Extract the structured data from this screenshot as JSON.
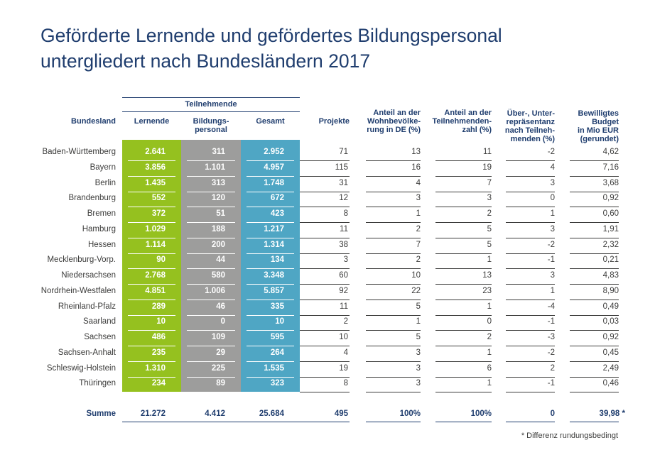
{
  "title_line1": "Geförderte Lernende und gefördertes Bildungspersonal",
  "title_line2": "untergliedert nach Bundesländern 2017",
  "colors": {
    "title": "#1f3d6e",
    "lernende": "#95c11f",
    "bildungspersonal": "#9d9d9c",
    "gesamt": "#4fa6c4"
  },
  "headers": {
    "group": "Teilnehmende",
    "bundesland": "Bundesland",
    "lernende": "Lernende",
    "bildungspersonal": [
      "Bildungs-",
      "personal"
    ],
    "gesamt": "Gesamt",
    "projekte": "Projekte",
    "anteil_bev": [
      "Anteil an der",
      "Wohnbevölke-",
      "rung in DE (%)"
    ],
    "anteil_tn": [
      "Anteil an der",
      "Teilnehmenden-",
      "zahl (%)"
    ],
    "repr": [
      "Über-, Unter-",
      "repräsentanz",
      "nach Teilneh-",
      "menden (%)"
    ],
    "budget": [
      "Bewilligtes",
      "Budget",
      "in Mio EUR",
      "(gerundet)"
    ]
  },
  "rows": [
    [
      "Baden-Württemberg",
      "2.641",
      "311",
      "2.952",
      "71",
      "13",
      "11",
      "-2",
      "4,62"
    ],
    [
      "Bayern",
      "3.856",
      "1.101",
      "4.957",
      "115",
      "16",
      "19",
      "4",
      "7,16"
    ],
    [
      "Berlin",
      "1.435",
      "313",
      "1.748",
      "31",
      "4",
      "7",
      "3",
      "3,68"
    ],
    [
      "Brandenburg",
      "552",
      "120",
      "672",
      "12",
      "3",
      "3",
      "0",
      "0,92"
    ],
    [
      "Bremen",
      "372",
      "51",
      "423",
      "8",
      "1",
      "2",
      "1",
      "0,60"
    ],
    [
      "Hamburg",
      "1.029",
      "188",
      "1.217",
      "11",
      "2",
      "5",
      "3",
      "1,91"
    ],
    [
      "Hessen",
      "1.114",
      "200",
      "1.314",
      "38",
      "7",
      "5",
      "-2",
      "2,32"
    ],
    [
      "Mecklenburg-Vorp.",
      "90",
      "44",
      "134",
      "3",
      "2",
      "1",
      "-1",
      "0,21"
    ],
    [
      "Niedersachsen",
      "2.768",
      "580",
      "3.348",
      "60",
      "10",
      "13",
      "3",
      "4,83"
    ],
    [
      "Nordrhein-Westfalen",
      "4.851",
      "1.006",
      "5.857",
      "92",
      "22",
      "23",
      "1",
      "8,90"
    ],
    [
      "Rheinland-Pfalz",
      "289",
      "46",
      "335",
      "11",
      "5",
      "1",
      "-4",
      "0,49"
    ],
    [
      "Saarland",
      "10",
      "0",
      "10",
      "2",
      "1",
      "0",
      "-1",
      "0,03"
    ],
    [
      "Sachsen",
      "486",
      "109",
      "595",
      "10",
      "5",
      "2",
      "-3",
      "0,92"
    ],
    [
      "Sachsen-Anhalt",
      "235",
      "29",
      "264",
      "4",
      "3",
      "1",
      "-2",
      "0,45"
    ],
    [
      "Schleswig-Holstein",
      "1.310",
      "225",
      "1.535",
      "19",
      "3",
      "6",
      "2",
      "2,49"
    ],
    [
      "Thüringen",
      "234",
      "89",
      "323",
      "8",
      "3",
      "1",
      "-1",
      "0,46"
    ]
  ],
  "summe": [
    "Summe",
    "21.272",
    "4.412",
    "25.684",
    "495",
    "100%",
    "100%",
    "0",
    "39,98 *"
  ],
  "footnote": "* Differenz rundungsbedingt"
}
